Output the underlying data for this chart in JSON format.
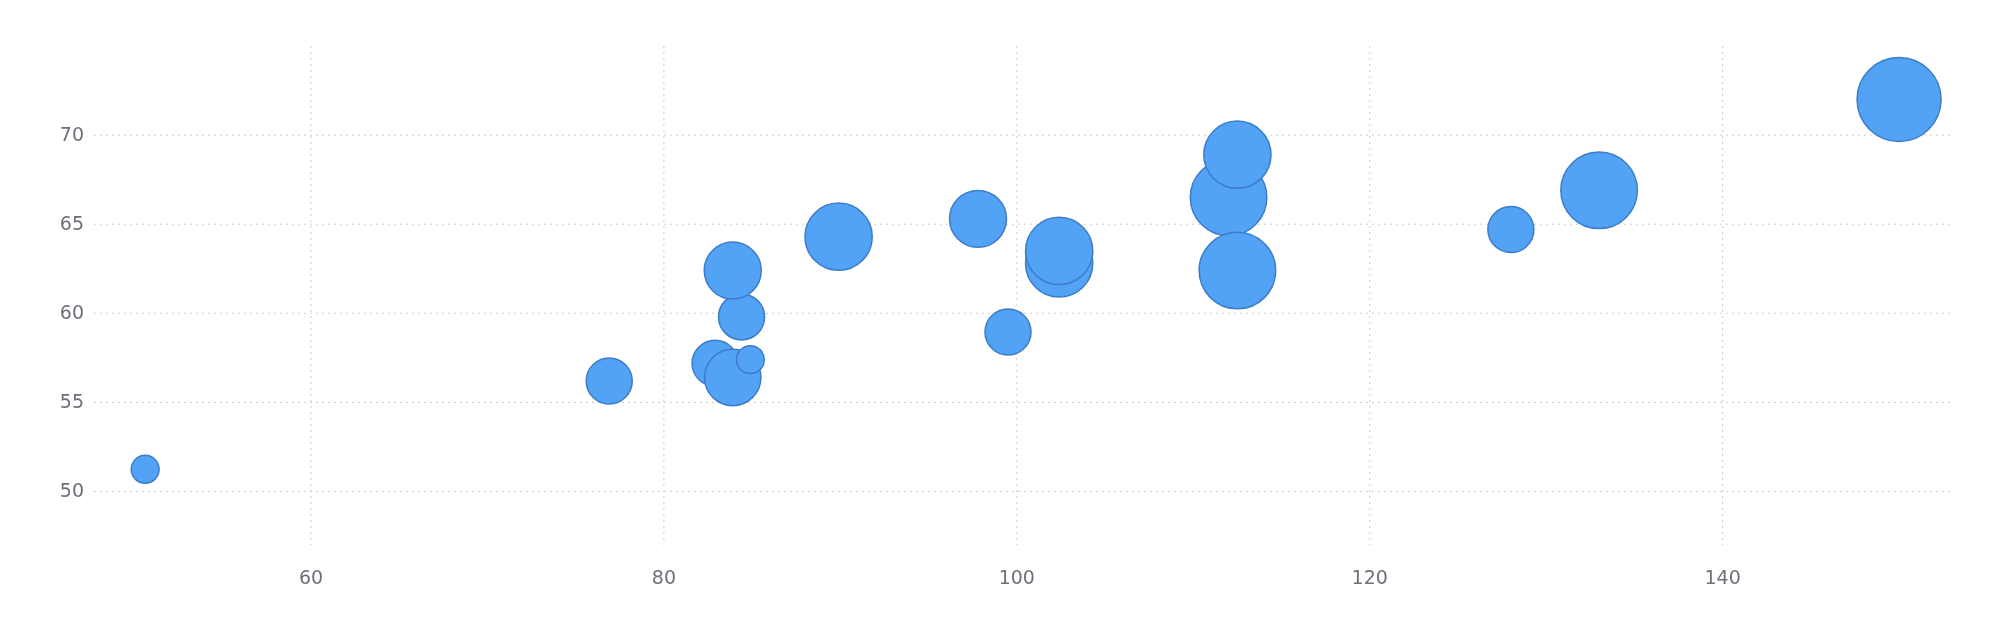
{
  "chart_data": {
    "type": "bubble",
    "color": "#52a2f5",
    "xlim": [
      47.7,
      153
    ],
    "ylim": [
      47,
      75
    ],
    "xticks": [
      60,
      80,
      100,
      120,
      140
    ],
    "yticks": [
      50,
      55,
      60,
      65,
      70
    ],
    "grid": true,
    "x": [
      50.6,
      76.9,
      82.9,
      83.9,
      84.9,
      84.4,
      83.9,
      89.9,
      97.8,
      99.5,
      102.4,
      102.4,
      112.0,
      112.5,
      112.5,
      128.0,
      133.0,
      150.0
    ],
    "values": [
      51.25,
      56.2,
      57.2,
      56.4,
      57.4,
      59.8,
      62.4,
      64.3,
      65.3,
      58.95,
      62.8,
      63.5,
      66.5,
      68.9,
      62.4,
      64.7,
      66.9,
      72.0
    ],
    "sizes": [
      0.11,
      0.3,
      0.3,
      0.45,
      0.11,
      0.3,
      0.46,
      0.64,
      0.46,
      0.3,
      0.64,
      0.64,
      0.83,
      0.64,
      0.83,
      0.3,
      0.83,
      1
    ]
  }
}
